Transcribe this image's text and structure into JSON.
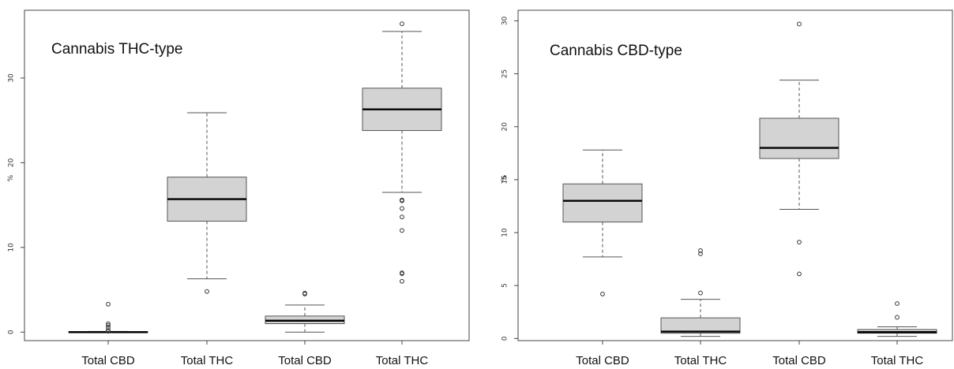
{
  "chart_data": [
    {
      "type": "box",
      "title": "Cannabis THC-type",
      "ylabel": "%",
      "ylim": [
        -1,
        38
      ],
      "yticks": [
        0,
        10,
        20,
        30
      ],
      "categories": [
        "Total CBD",
        "Total THC",
        "Total CBD",
        "Total THC"
      ],
      "boxes": [
        {
          "whisker_low": 0,
          "q1": 0,
          "median": 0,
          "q3": 0.05,
          "whisker_high": 0.08,
          "outliers": [
            0.1,
            0.2,
            0.5,
            0.8,
            1.0,
            3.3
          ]
        },
        {
          "whisker_low": 6.3,
          "q1": 13.1,
          "median": 15.7,
          "q3": 18.3,
          "whisker_high": 25.9,
          "outliers": [
            4.8
          ]
        },
        {
          "whisker_low": 0,
          "q1": 1.0,
          "median": 1.35,
          "q3": 1.9,
          "whisker_high": 3.2,
          "outliers": [
            4.5,
            4.6
          ]
        },
        {
          "whisker_low": 16.5,
          "q1": 23.8,
          "median": 26.3,
          "q3": 28.8,
          "whisker_high": 35.5,
          "outliers": [
            36.4,
            15.6,
            15.5,
            14.6,
            13.6,
            12.0,
            7.0,
            6.9,
            6.0
          ]
        }
      ]
    },
    {
      "type": "box",
      "title": "Cannabis CBD-type",
      "ylabel": "%",
      "ylim": [
        -0.2,
        31
      ],
      "yticks": [
        0,
        5,
        10,
        15,
        20,
        25,
        30
      ],
      "categories": [
        "Total CBD",
        "Total THC",
        "Total CBD",
        "Total THC"
      ],
      "boxes": [
        {
          "whisker_low": 7.7,
          "q1": 11.0,
          "median": 13.0,
          "q3": 14.6,
          "whisker_high": 17.8,
          "outliers": [
            4.2
          ]
        },
        {
          "whisker_low": 0.2,
          "q1": 0.5,
          "median": 0.65,
          "q3": 1.95,
          "whisker_high": 3.7,
          "outliers": [
            4.3,
            8.0,
            8.3
          ]
        },
        {
          "whisker_low": 12.2,
          "q1": 17.0,
          "median": 18.0,
          "q3": 20.8,
          "whisker_high": 24.4,
          "outliers": [
            9.1,
            6.1,
            29.7
          ]
        },
        {
          "whisker_low": 0.2,
          "q1": 0.5,
          "median": 0.6,
          "q3": 0.85,
          "whisker_high": 1.1,
          "outliers": [
            2.0,
            3.3
          ]
        }
      ]
    }
  ]
}
